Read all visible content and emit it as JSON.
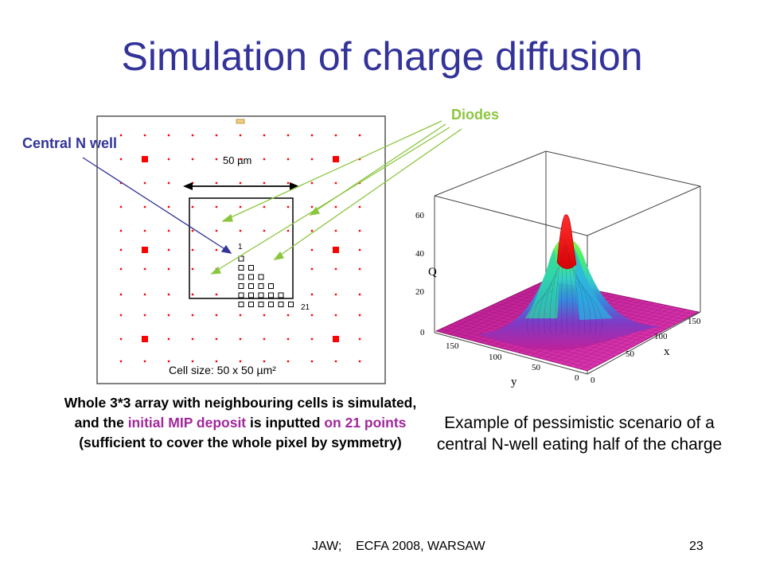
{
  "slide": {
    "title": "Simulation of charge diffusion",
    "labels": {
      "diodes": "Diodes",
      "central_n_well": "Central N well"
    },
    "pixel_diagram": {
      "dimension_label": "50 µm",
      "point_first": "1",
      "point_last": "21",
      "cell_size_label": "Cell size: 50 x 50 µm²"
    },
    "caption_left": {
      "part1": "Whole 3*3 array with neighbouring cells is simulated, and the ",
      "highlight1": "initial MIP deposit",
      "part2": " is inputted ",
      "highlight2": "on 21 points",
      "part3": " (sufficient to cover the whole pixel by symmetry)"
    },
    "caption_right": "Example of pessimistic scenario of a central N-well eating half of the charge",
    "surface_plot": {
      "z_label": "Q",
      "x_label": "x",
      "y_label": "y",
      "z_ticks": [
        "0",
        "20",
        "40",
        "60"
      ],
      "x_ticks": [
        "0",
        "50",
        "100",
        "150"
      ],
      "y_ticks": [
        "150",
        "100",
        "50",
        "0"
      ]
    },
    "footer": {
      "left": "JAW;    ECFA 2008, WARSAW",
      "page": "23"
    },
    "colors": {
      "title": "#333399",
      "diodes": "#8cc63f",
      "n_well_arrow": "#333399",
      "diode_marker": "#ff0000",
      "highlight": "#a0289a"
    }
  }
}
